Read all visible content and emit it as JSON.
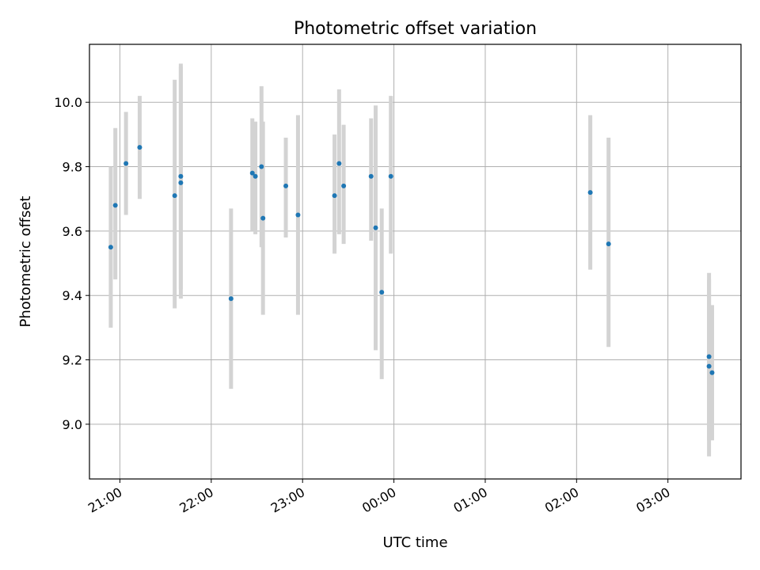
{
  "chart_data": {
    "type": "scatter",
    "title": "Photometric offset variation",
    "xlabel": "UTC time",
    "ylabel": "Photometric offset",
    "x_unit": "UTC",
    "x_range": [
      "20:40",
      "03:48"
    ],
    "ylim": [
      8.83,
      10.18
    ],
    "grid": true,
    "colors": {
      "point": "#1f77b4",
      "errorbar": "#d3d3d3",
      "grid": "#b0b0b0"
    },
    "x_ticks": [
      "21:00",
      "22:00",
      "23:00",
      "00:00",
      "01:00",
      "02:00",
      "03:00"
    ],
    "y_ticks": [
      "9.0",
      "9.2",
      "9.4",
      "9.6",
      "9.8",
      "10.0"
    ],
    "points": [
      {
        "time": "20:54",
        "offset": 9.55,
        "low": 9.3,
        "high": 9.8
      },
      {
        "time": "20:57",
        "offset": 9.68,
        "low": 9.45,
        "high": 9.92
      },
      {
        "time": "21:04",
        "offset": 9.81,
        "low": 9.65,
        "high": 9.97
      },
      {
        "time": "21:13",
        "offset": 9.86,
        "low": 9.7,
        "high": 10.02
      },
      {
        "time": "21:36",
        "offset": 9.71,
        "low": 9.36,
        "high": 10.07
      },
      {
        "time": "21:40",
        "offset": 9.77,
        "low": 9.42,
        "high": 10.12
      },
      {
        "time": "21:40",
        "offset": 9.75,
        "low": 9.39,
        "high": 10.11
      },
      {
        "time": "22:13",
        "offset": 9.39,
        "low": 9.11,
        "high": 9.67
      },
      {
        "time": "22:27",
        "offset": 9.78,
        "low": 9.6,
        "high": 9.95
      },
      {
        "time": "22:29",
        "offset": 9.77,
        "low": 9.59,
        "high": 9.94
      },
      {
        "time": "22:33",
        "offset": 9.8,
        "low": 9.55,
        "high": 10.05
      },
      {
        "time": "22:34",
        "offset": 9.64,
        "low": 9.34,
        "high": 9.94
      },
      {
        "time": "22:49",
        "offset": 9.74,
        "low": 9.58,
        "high": 9.89
      },
      {
        "time": "22:57",
        "offset": 9.65,
        "low": 9.34,
        "high": 9.96
      },
      {
        "time": "23:21",
        "offset": 9.71,
        "low": 9.53,
        "high": 9.9
      },
      {
        "time": "23:24",
        "offset": 9.81,
        "low": 9.59,
        "high": 10.04
      },
      {
        "time": "23:27",
        "offset": 9.74,
        "low": 9.56,
        "high": 9.93
      },
      {
        "time": "23:45",
        "offset": 9.77,
        "low": 9.57,
        "high": 9.95
      },
      {
        "time": "23:48",
        "offset": 9.61,
        "low": 9.23,
        "high": 9.99
      },
      {
        "time": "23:52",
        "offset": 9.41,
        "low": 9.14,
        "high": 9.67
      },
      {
        "time": "23:58",
        "offset": 9.77,
        "low": 9.53,
        "high": 10.02
      },
      {
        "time": "02:09",
        "offset": 9.72,
        "low": 9.48,
        "high": 9.96
      },
      {
        "time": "02:21",
        "offset": 9.56,
        "low": 9.24,
        "high": 9.89
      },
      {
        "time": "03:27",
        "offset": 9.21,
        "low": 8.95,
        "high": 9.47
      },
      {
        "time": "03:27",
        "offset": 9.18,
        "low": 8.9,
        "high": 9.45
      },
      {
        "time": "03:29",
        "offset": 9.16,
        "low": 8.95,
        "high": 9.37
      }
    ]
  }
}
